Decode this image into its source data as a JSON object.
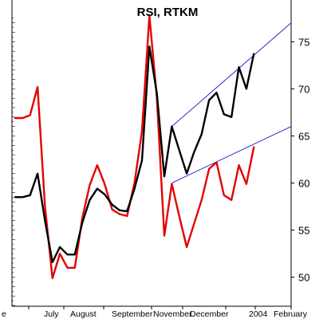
{
  "chart_data": {
    "type": "line",
    "title": "RSI, RTKM",
    "xlabel": "",
    "ylabel": "",
    "ylim": [
      47,
      78
    ],
    "right_axis_ticks": [
      50,
      55,
      60,
      65,
      70,
      75
    ],
    "x_tick_labels": [
      "e",
      "July",
      "August",
      "September",
      "November",
      "December",
      "2004",
      "February"
    ],
    "grid": false,
    "series": [
      {
        "color": "#e60000",
        "x": [
          0,
          1,
          2,
          3,
          4,
          5,
          6,
          7,
          8,
          9,
          10,
          11,
          12,
          13,
          14,
          15,
          16,
          17,
          18,
          19,
          20,
          21,
          22,
          23,
          24,
          25,
          26,
          27,
          28,
          29,
          30,
          31,
          32
        ],
        "values": [
          66.9,
          66.9,
          67.2,
          70.2,
          57.5,
          49.9,
          52.5,
          51.0,
          51.0,
          56.3,
          59.8,
          61.9,
          59.9,
          57.2,
          56.7,
          56.5,
          60.0,
          65.5,
          77.8,
          69.0,
          54.4,
          59.9,
          56.5,
          53.2,
          55.7,
          58.2,
          61.5,
          62.2,
          58.7,
          58.2,
          61.9,
          59.9,
          63.8
        ]
      },
      {
        "color": "#000000",
        "x": [
          0,
          1,
          2,
          3,
          4,
          5,
          6,
          7,
          8,
          9,
          10,
          11,
          12,
          13,
          14,
          15,
          16,
          17,
          18,
          19,
          20,
          21,
          22,
          23,
          24,
          25,
          26,
          27,
          28,
          29,
          30,
          31,
          32
        ],
        "values": [
          58.5,
          58.5,
          58.7,
          61.0,
          56.0,
          51.6,
          53.2,
          52.4,
          52.4,
          55.8,
          58.2,
          59.4,
          58.8,
          57.7,
          57.1,
          57.0,
          59.4,
          62.4,
          74.5,
          69.5,
          60.7,
          66.0,
          63.5,
          61.0,
          63.3,
          65.2,
          68.8,
          69.6,
          67.3,
          67.0,
          72.3,
          70.0,
          73.7
        ]
      }
    ],
    "trendlines": [
      {
        "color": "#0000cc",
        "x": [
          21,
          37
        ],
        "values": [
          66.0,
          77.0
        ]
      },
      {
        "color": "#0000cc",
        "x": [
          21,
          37
        ],
        "values": [
          60.0,
          66.0
        ]
      }
    ]
  }
}
